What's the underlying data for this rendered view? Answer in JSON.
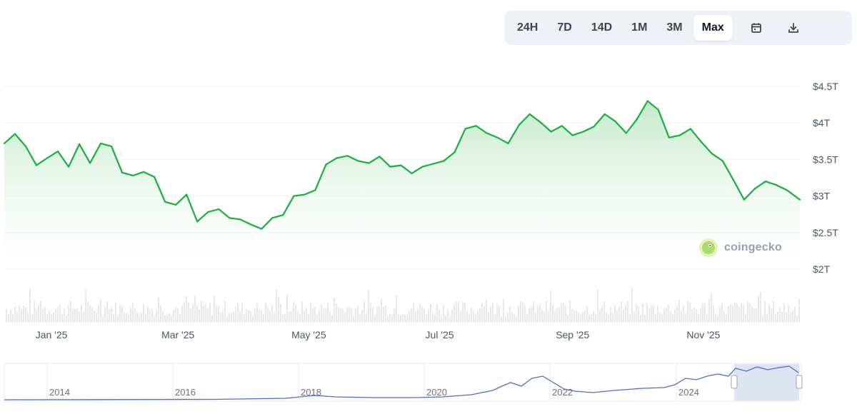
{
  "toolbar": {
    "ranges": [
      "24H",
      "7D",
      "14D",
      "1M",
      "3M",
      "Max"
    ],
    "active": "Max",
    "icons": [
      "calendar-icon",
      "download-icon"
    ]
  },
  "watermark": {
    "text": "coingecko"
  },
  "colors": {
    "line": "#16b13a",
    "area_top": "#cfeed5",
    "volume": "#e6e8ec",
    "navigator_line": "#4a6fc4",
    "navigator_selection": "#d7dff0"
  },
  "chart_data": {
    "type": "area",
    "y_unit": "USD market cap (trillions)",
    "ylim": [
      2,
      4.5
    ],
    "y_ticks": [
      {
        "value": 4.5,
        "label": "$4.5T"
      },
      {
        "value": 4,
        "label": "$4T"
      },
      {
        "value": 3.5,
        "label": "$3.5T"
      },
      {
        "value": 3,
        "label": "$3T"
      },
      {
        "value": 2.5,
        "label": "$2.5T"
      },
      {
        "value": 2,
        "label": "$2T"
      }
    ],
    "x_range": [
      "2024-12-10",
      "2025-12-16"
    ],
    "x_ticks": [
      {
        "date": "2025-01-01",
        "label": "Jan '25"
      },
      {
        "date": "2025-03-01",
        "label": "Mar '25"
      },
      {
        "date": "2025-05-01",
        "label": "May '25"
      },
      {
        "date": "2025-07-01",
        "label": "Jul '25"
      },
      {
        "date": "2025-09-01",
        "label": "Sep '25"
      },
      {
        "date": "2025-11-01",
        "label": "Nov '25"
      }
    ],
    "series": [
      {
        "x": [
          "2024-12-10",
          "2024-12-15",
          "2024-12-20",
          "2024-12-25",
          "2024-12-30",
          "2025-01-04",
          "2025-01-09",
          "2025-01-14",
          "2025-01-19",
          "2025-01-24",
          "2025-01-29",
          "2025-02-03",
          "2025-02-08",
          "2025-02-13",
          "2025-02-18",
          "2025-02-23",
          "2025-02-28",
          "2025-03-05",
          "2025-03-10",
          "2025-03-15",
          "2025-03-20",
          "2025-03-25",
          "2025-03-30",
          "2025-04-04",
          "2025-04-09",
          "2025-04-14",
          "2025-04-19",
          "2025-04-24",
          "2025-04-29",
          "2025-05-04",
          "2025-05-09",
          "2025-05-14",
          "2025-05-19",
          "2025-05-24",
          "2025-05-29",
          "2025-06-03",
          "2025-06-08",
          "2025-06-13",
          "2025-06-18",
          "2025-06-23",
          "2025-06-28",
          "2025-07-03",
          "2025-07-08",
          "2025-07-13",
          "2025-07-18",
          "2025-07-23",
          "2025-07-28",
          "2025-08-02",
          "2025-08-07",
          "2025-08-12",
          "2025-08-17",
          "2025-08-22",
          "2025-08-27",
          "2025-09-01",
          "2025-09-06",
          "2025-09-11",
          "2025-09-16",
          "2025-09-21",
          "2025-09-26",
          "2025-10-01",
          "2025-10-06",
          "2025-10-11",
          "2025-10-16",
          "2025-10-21",
          "2025-10-26",
          "2025-10-31",
          "2025-11-05",
          "2025-11-10",
          "2025-11-15",
          "2025-11-20",
          "2025-11-25",
          "2025-11-30",
          "2025-12-05",
          "2025-12-10",
          "2025-12-16"
        ],
        "y": [
          3.72,
          3.85,
          3.68,
          3.42,
          3.52,
          3.61,
          3.4,
          3.71,
          3.45,
          3.72,
          3.68,
          3.32,
          3.28,
          3.33,
          3.26,
          2.92,
          2.88,
          3.02,
          2.65,
          2.78,
          2.82,
          2.7,
          2.68,
          2.61,
          2.55,
          2.7,
          2.74,
          3.0,
          3.02,
          3.08,
          3.43,
          3.52,
          3.55,
          3.48,
          3.45,
          3.54,
          3.4,
          3.42,
          3.31,
          3.4,
          3.44,
          3.48,
          3.6,
          3.92,
          3.96,
          3.86,
          3.8,
          3.72,
          3.97,
          4.12,
          4.01,
          3.88,
          3.96,
          3.83,
          3.88,
          3.95,
          4.12,
          4.02,
          3.86,
          4.05,
          4.3,
          4.18,
          3.8,
          3.83,
          3.92,
          3.74,
          3.58,
          3.48,
          3.22,
          2.95,
          3.1,
          3.2,
          3.15,
          3.08,
          2.95
        ]
      }
    ],
    "navigator": {
      "x_ticks": [
        "2014",
        "2016",
        "2018",
        "2020",
        "2022",
        "2024"
      ],
      "selection": "last 1 year"
    }
  }
}
